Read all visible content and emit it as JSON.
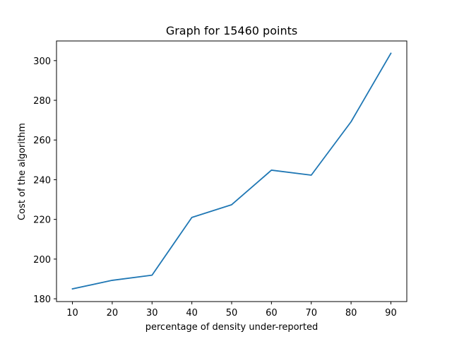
{
  "chart_data": {
    "type": "line",
    "title": "Graph for 15460 points",
    "xlabel": "percentage of density under-reported",
    "ylabel": "Cost of the algorithm",
    "x": [
      10,
      20,
      30,
      40,
      50,
      60,
      70,
      80,
      90
    ],
    "series": [
      {
        "values": [
          185.0,
          189.3,
          191.9,
          221.0,
          227.4,
          244.8,
          242.3,
          269.2,
          303.7
        ],
        "color": "#1f77b4"
      }
    ],
    "xticks": [
      10,
      20,
      30,
      40,
      50,
      60,
      70,
      80,
      90
    ],
    "yticks": [
      180,
      200,
      220,
      240,
      260,
      280,
      300
    ],
    "xlim": [
      6,
      94
    ],
    "ylim": [
      178.6,
      309.9
    ],
    "grid": false,
    "legend": "none"
  }
}
